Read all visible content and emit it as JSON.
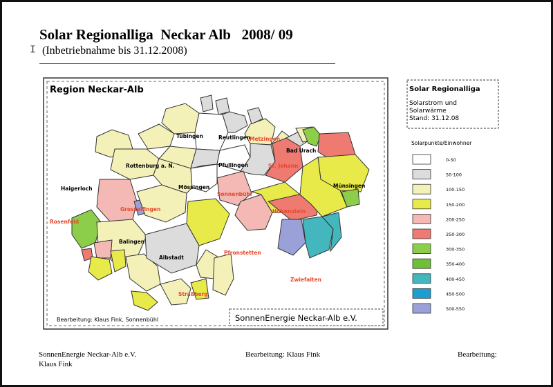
{
  "header": {
    "title": "Solar Regionalliga  Neckar Alb   2008/ 09",
    "subtitle": "(Inbetriebnahme bis 31.12.2008)",
    "cursor_glyph": "I"
  },
  "map": {
    "region_title": "Region Neckar-Alb",
    "credit": "Bearbeitung: Klaus Fink, Sonnenbühl",
    "org_box": "SonnenEnergie Neckar-Alb e.V.",
    "places": [
      {
        "name": "Tübingen",
        "color": "#000000"
      },
      {
        "name": "Reutlingen",
        "color": "#000000"
      },
      {
        "name": "Metzingen",
        "color": "#e8472a"
      },
      {
        "name": "Bad Urach",
        "color": "#000000"
      },
      {
        "name": "Pfullingen",
        "color": "#000000"
      },
      {
        "name": "St. Johann",
        "color": "#e8472a"
      },
      {
        "name": "Rottenburg a. N.",
        "color": "#000000"
      },
      {
        "name": "Haigerloch",
        "color": "#000000"
      },
      {
        "name": "Mössingen",
        "color": "#000000"
      },
      {
        "name": "Sonnenbühl",
        "color": "#e8472a"
      },
      {
        "name": "Münsingen",
        "color": "#000000"
      },
      {
        "name": "Grosselfingen",
        "color": "#e8472a"
      },
      {
        "name": "Hohenstein",
        "color": "#e8472a"
      },
      {
        "name": "Rosenfeld",
        "color": "#e8472a"
      },
      {
        "name": "Balingen",
        "color": "#000000"
      },
      {
        "name": "Albstadt",
        "color": "#000000"
      },
      {
        "name": "Pfronstetten",
        "color": "#e8472a"
      },
      {
        "name": "Zwiefalten",
        "color": "#e8472a"
      },
      {
        "name": "Straßberg",
        "color": "#e8472a"
      }
    ]
  },
  "legend": {
    "title": "Solar Regionalliga",
    "line1": "Solarstrom und",
    "line2": "Solarwärme",
    "line3": "Stand: 31.12.08",
    "scale_title": "Solarpunkte/Einwohner",
    "classes": [
      {
        "label": "0-50",
        "color": "#ffffff"
      },
      {
        "label": "50-100",
        "color": "#dcdcdc"
      },
      {
        "label": "100-150",
        "color": "#f3f1b8"
      },
      {
        "label": "150-200",
        "color": "#e8ea4a"
      },
      {
        "label": "200-250",
        "color": "#f4b9b4"
      },
      {
        "label": "250-300",
        "color": "#ee7a72"
      },
      {
        "label": "300-350",
        "color": "#8ccd4a"
      },
      {
        "label": "350-400",
        "color": "#6fbf3a"
      },
      {
        "label": "400-450",
        "color": "#44b6bd"
      },
      {
        "label": "450-500",
        "color": "#1b9fd0"
      },
      {
        "label": "500-550",
        "color": "#9aa0d8"
      }
    ]
  },
  "footer": {
    "left": "SonnenEnergie Neckar-Alb e.V.",
    "left2": "Klaus Fink",
    "middle": "Bearbeitung: Klaus Fink",
    "right": "Bearbeitung:"
  }
}
